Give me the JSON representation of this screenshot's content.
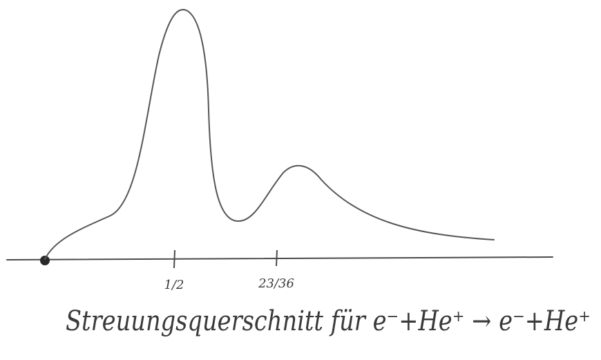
{
  "ticks": [
    "1/2",
    "23/36"
  ],
  "caption": "Streuungsquerschnitt für e⁻+He⁺ → e⁻+He⁺"
}
